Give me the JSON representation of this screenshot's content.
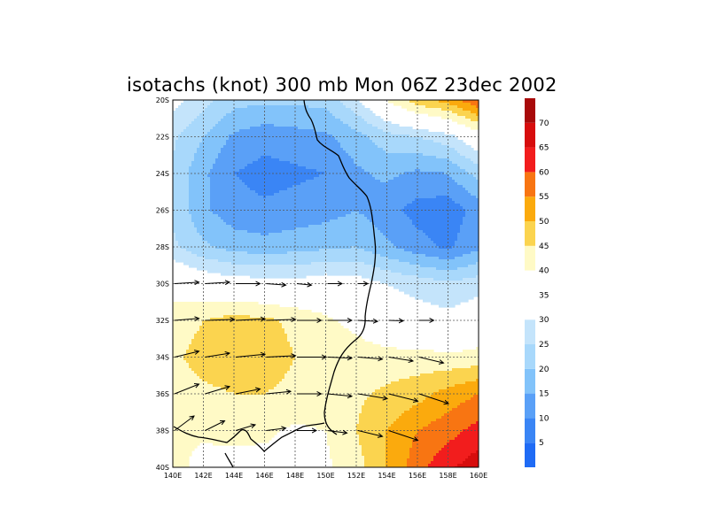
{
  "chart_data": {
    "type": "heatmap",
    "title": "isotachs (knot) 300 mb Mon 06Z 23dec 2002",
    "x_ticks": [
      "140E",
      "142E",
      "144E",
      "146E",
      "148E",
      "150E",
      "152E",
      "154E",
      "156E",
      "158E",
      "160E"
    ],
    "y_ticks": [
      "20S",
      "22S",
      "24S",
      "26S",
      "28S",
      "30S",
      "32S",
      "34S",
      "36S",
      "38S",
      "40S"
    ],
    "xlim": [
      140,
      160
    ],
    "ylim": [
      -40,
      -20
    ],
    "grid": true,
    "legend": "right",
    "colorbar": {
      "labels": [
        "5",
        "10",
        "15",
        "20",
        "25",
        "30",
        "35",
        "40",
        "45",
        "50",
        "55",
        "60",
        "65",
        "70"
      ],
      "bins": [
        {
          "from": 0,
          "to": 5,
          "color": "#1f6bf5"
        },
        {
          "from": 5,
          "to": 10,
          "color": "#3a85f5"
        },
        {
          "from": 10,
          "to": 15,
          "color": "#5aa0f7"
        },
        {
          "from": 15,
          "to": 20,
          "color": "#82c3fa"
        },
        {
          "from": 20,
          "to": 25,
          "color": "#a8d8fb"
        },
        {
          "from": 25,
          "to": 30,
          "color": "#c4e4fb"
        },
        {
          "from": 30,
          "to": 40,
          "color": "#ffffff"
        },
        {
          "from": 40,
          "to": 45,
          "color": "#fffac6"
        },
        {
          "from": 45,
          "to": 50,
          "color": "#fbd44f"
        },
        {
          "from": 50,
          "to": 55,
          "color": "#fbaa0d"
        },
        {
          "from": 55,
          "to": 60,
          "color": "#f87512"
        },
        {
          "from": 60,
          "to": 65,
          "color": "#f21d1d"
        },
        {
          "from": 65,
          "to": 70,
          "color": "#d70d0d"
        },
        {
          "from": 70,
          "to": 75,
          "color": "#a80a0a"
        }
      ]
    },
    "grid_x": [
      140,
      142,
      144,
      146,
      148,
      150,
      152,
      154,
      156,
      158,
      160
    ],
    "grid_y": [
      -20,
      -22,
      -24,
      -26,
      -28,
      -30,
      -32,
      -34,
      -36,
      -38,
      -40
    ],
    "speed": [
      [
        32,
        27,
        22,
        21,
        21,
        22,
        29,
        40,
        48,
        52,
        60
      ],
      [
        26,
        20,
        14,
        12,
        13,
        14,
        18,
        23,
        25,
        28,
        36
      ],
      [
        24,
        16,
        10,
        8,
        9,
        10,
        14,
        16,
        14,
        15,
        22
      ],
      [
        24,
        16,
        12,
        11,
        12,
        13,
        15,
        12,
        8,
        7,
        12
      ],
      [
        26,
        21,
        18,
        17,
        18,
        19,
        20,
        16,
        12,
        9,
        14
      ],
      [
        38,
        35,
        33,
        33,
        32,
        34,
        33,
        30,
        28,
        26,
        28
      ],
      [
        42,
        45,
        47,
        46,
        44,
        41,
        38,
        34,
        33,
        32,
        34
      ],
      [
        44,
        47,
        48,
        47,
        45,
        44,
        43,
        42,
        42,
        41,
        42
      ],
      [
        42,
        44,
        45,
        45,
        44,
        44,
        44,
        46,
        48,
        52,
        55
      ],
      [
        40,
        41,
        42,
        41,
        39,
        40,
        45,
        50,
        55,
        58,
        62
      ],
      [
        42,
        38,
        37,
        38,
        38,
        39,
        43,
        50,
        58,
        64,
        68
      ]
    ],
    "vectors": [
      {
        "x": 140,
        "y": -30,
        "u": 5,
        "v": 0.3
      },
      {
        "x": 142,
        "y": -30,
        "u": 5,
        "v": 0.3
      },
      {
        "x": 144,
        "y": -30,
        "u": 5,
        "v": 0
      },
      {
        "x": 146,
        "y": -30,
        "u": 4,
        "v": -0.3
      },
      {
        "x": 148,
        "y": -30,
        "u": 3,
        "v": -0.3
      },
      {
        "x": 150,
        "y": -30,
        "u": 3,
        "v": 0
      },
      {
        "x": 152,
        "y": -30,
        "u": 2,
        "v": 0
      },
      {
        "x": 140,
        "y": -32,
        "u": 5,
        "v": 0.4
      },
      {
        "x": 142,
        "y": -32,
        "u": 6,
        "v": 0.2
      },
      {
        "x": 144,
        "y": -32,
        "u": 6,
        "v": 0.3
      },
      {
        "x": 146,
        "y": -32,
        "u": 6,
        "v": 0.2
      },
      {
        "x": 148,
        "y": -32,
        "u": 5,
        "v": 0
      },
      {
        "x": 150,
        "y": -32,
        "u": 5,
        "v": 0
      },
      {
        "x": 152,
        "y": -32,
        "u": 4,
        "v": -0.2
      },
      {
        "x": 154,
        "y": -32,
        "u": 3,
        "v": -0.1
      },
      {
        "x": 156,
        "y": -32,
        "u": 3,
        "v": 0
      },
      {
        "x": 140,
        "y": -34,
        "u": 5,
        "v": 1.2
      },
      {
        "x": 142,
        "y": -34,
        "u": 5,
        "v": 0.8
      },
      {
        "x": 144,
        "y": -34,
        "u": 6,
        "v": 0.6
      },
      {
        "x": 146,
        "y": -34,
        "u": 6,
        "v": 0.3
      },
      {
        "x": 148,
        "y": -34,
        "u": 6,
        "v": 0
      },
      {
        "x": 150,
        "y": -34,
        "u": 5,
        "v": -0.2
      },
      {
        "x": 152,
        "y": -34,
        "u": 5,
        "v": -0.4
      },
      {
        "x": 154,
        "y": -34,
        "u": 5,
        "v": -0.8
      },
      {
        "x": 156,
        "y": -34,
        "u": 5,
        "v": -1.2
      },
      {
        "x": 140,
        "y": -36,
        "u": 5,
        "v": 2
      },
      {
        "x": 142,
        "y": -36,
        "u": 5,
        "v": 1.5
      },
      {
        "x": 144,
        "y": -36,
        "u": 5,
        "v": 1
      },
      {
        "x": 146,
        "y": -36,
        "u": 5,
        "v": 0.5
      },
      {
        "x": 148,
        "y": -36,
        "u": 5,
        "v": 0
      },
      {
        "x": 150,
        "y": -36,
        "u": 5,
        "v": -0.5
      },
      {
        "x": 152,
        "y": -36,
        "u": 6,
        "v": -1
      },
      {
        "x": 154,
        "y": -36,
        "u": 6,
        "v": -1.5
      },
      {
        "x": 156,
        "y": -36,
        "u": 6,
        "v": -2
      },
      {
        "x": 140,
        "y": -38,
        "u": 4,
        "v": 3
      },
      {
        "x": 142,
        "y": -38,
        "u": 4,
        "v": 2
      },
      {
        "x": 144,
        "y": -38,
        "u": 4,
        "v": 1.2
      },
      {
        "x": 146,
        "y": -38,
        "u": 4,
        "v": 0.5
      },
      {
        "x": 148,
        "y": -38,
        "u": 4,
        "v": 0
      },
      {
        "x": 150,
        "y": -38,
        "u": 4,
        "v": -0.5
      },
      {
        "x": 152,
        "y": -38,
        "u": 5,
        "v": -1.2
      },
      {
        "x": 154,
        "y": -38,
        "u": 6,
        "v": -2
      }
    ]
  }
}
